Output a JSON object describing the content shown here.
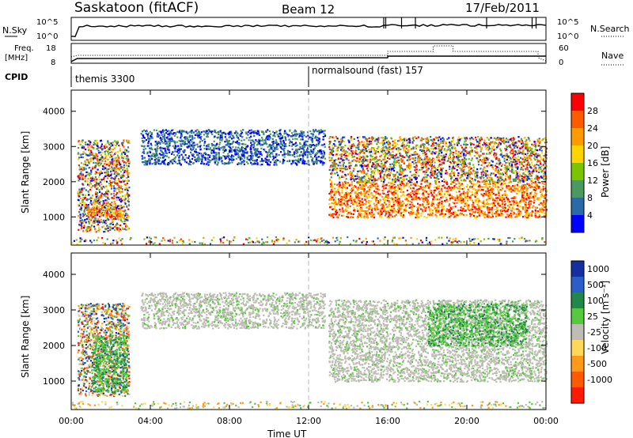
{
  "header": {
    "station": "Saskatoon (fitACF)",
    "beam": "Beam 12",
    "date": "17/Feb/2011"
  },
  "top_panels": {
    "noise_left_label": "N.Sky",
    "noise_right_label": "N.Search",
    "noise_ticks": [
      "10^5",
      "10^0"
    ],
    "freq_left_label_1": "Freq.",
    "freq_left_label_2": "[MHz]",
    "freq_ticks": [
      "18",
      "8"
    ],
    "nave_label": "Nave",
    "nave_ticks": [
      "60",
      "0"
    ],
    "cpid_label": "CPID",
    "cpid_segments": [
      {
        "name": "themis 3300",
        "start_hour": 0,
        "end_hour": 12
      },
      {
        "name": "normalsound (fast) 157",
        "start_hour": 12,
        "end_hour": 24
      }
    ]
  },
  "colorbars": {
    "power": {
      "label": "Power [dB]",
      "ticks": [
        "28",
        "24",
        "20",
        "16",
        "12",
        "8",
        "4"
      ],
      "colors": [
        "#ff0000",
        "#ff5a00",
        "#ff9a00",
        "#ffd400",
        "#7cc400",
        "#4a9a60",
        "#2a6aa6",
        "#0000ff"
      ]
    },
    "velocity": {
      "label": "Velocity [m s⁻¹]",
      "ticks": [
        "1000",
        "500",
        "100",
        "25",
        "-25",
        "-100",
        "-500",
        "-1000"
      ],
      "colors": [
        "#1430a0",
        "#2a5ec8",
        "#22884a",
        "#56c93c",
        "#bdbdb4",
        "#ffd85a",
        "#ff9a18",
        "#ff5a00",
        "#ff1a00"
      ]
    }
  },
  "chart_data": [
    {
      "type": "heatmap",
      "panel": "power",
      "ylabel": "Slant Range [km]",
      "ylim": [
        200,
        4600
      ],
      "yticks": [
        "4000",
        "3000",
        "2000",
        "1000"
      ],
      "xlim": [
        0,
        24
      ],
      "regions": [
        {
          "t0": 0.3,
          "t1": 2.9,
          "r0": 600,
          "r1": 3200,
          "level": "mixed"
        },
        {
          "t0": 0.8,
          "t1": 2.8,
          "r0": 1000,
          "r1": 1300,
          "level": "high"
        },
        {
          "t0": 3.5,
          "t1": 12.8,
          "r0": 2500,
          "r1": 3500,
          "level": "low"
        },
        {
          "t0": 13.0,
          "t1": 24.0,
          "r0": 1000,
          "r1": 2000,
          "level": "high"
        },
        {
          "t0": 13.0,
          "t1": 24.0,
          "r0": 2000,
          "r1": 3300,
          "level": "mixed"
        },
        {
          "t0": 0.0,
          "t1": 24.0,
          "r0": 250,
          "r1": 450,
          "level": "speckle"
        }
      ]
    },
    {
      "type": "heatmap",
      "panel": "velocity",
      "ylabel": "Slant Range [km]",
      "ylim": [
        200,
        4600
      ],
      "yticks": [
        "4000",
        "3000",
        "2000",
        "1000"
      ],
      "xlim": [
        0,
        24
      ],
      "xlabel": "Time UT",
      "xticks": [
        "00:00",
        "04:00",
        "08:00",
        "12:00",
        "16:00",
        "20:00",
        "00:00"
      ],
      "regions": [
        {
          "t0": 0.3,
          "t1": 2.9,
          "r0": 600,
          "r1": 3200,
          "level": "mixed"
        },
        {
          "t0": 1.0,
          "t1": 2.8,
          "r0": 700,
          "r1": 2300,
          "level": "green"
        },
        {
          "t0": 3.5,
          "t1": 12.8,
          "r0": 2500,
          "r1": 3500,
          "level": "ground"
        },
        {
          "t0": 13.0,
          "t1": 24.0,
          "r0": 1000,
          "r1": 3300,
          "level": "ground"
        },
        {
          "t0": 18.0,
          "t1": 23.0,
          "r0": 2000,
          "r1": 3200,
          "level": "green"
        },
        {
          "t0": 0.0,
          "t1": 24.0,
          "r0": 250,
          "r1": 450,
          "level": "speckle"
        }
      ]
    }
  ]
}
